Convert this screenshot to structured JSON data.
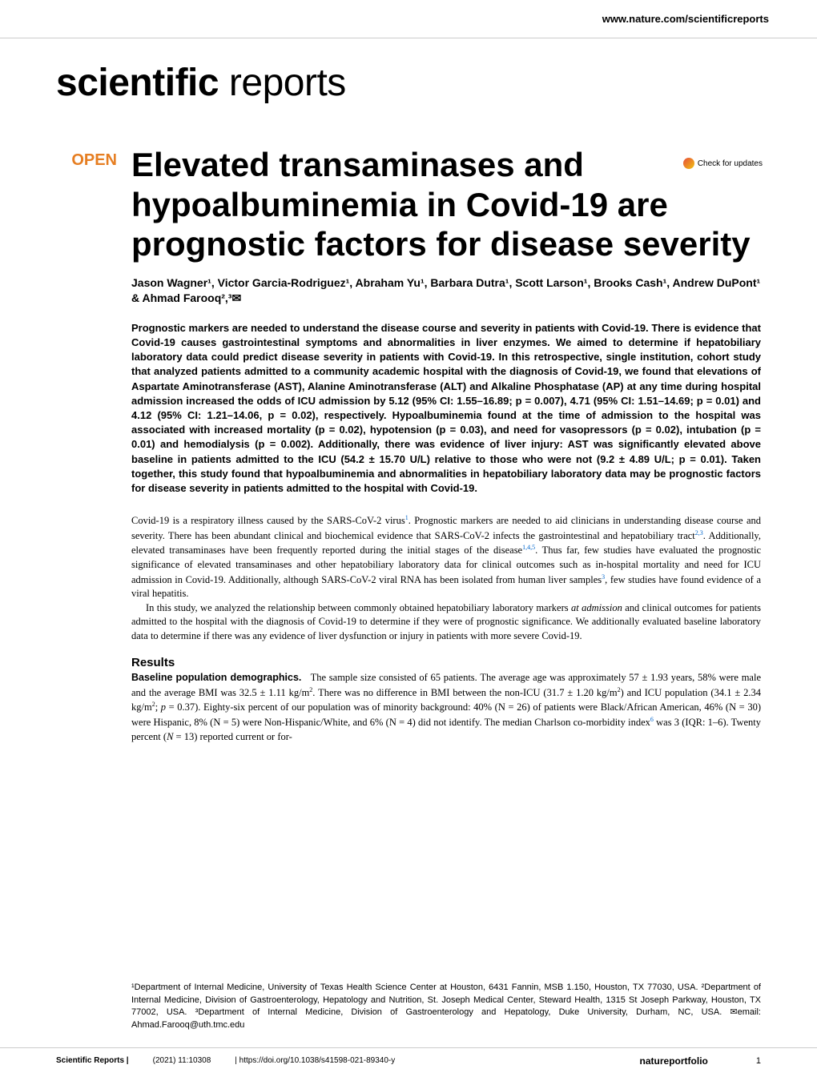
{
  "header": {
    "url": "www.nature.com/scientificreports"
  },
  "brand": {
    "bold": "scientific",
    "light": " reports"
  },
  "check_updates": "Check for updates",
  "open_label": "OPEN",
  "title": "Elevated transaminases and hypoalbuminemia in Covid-19 are prognostic factors for disease severity",
  "authors": "Jason Wagner¹, Victor Garcia-Rodriguez¹, Abraham Yu¹, Barbara Dutra¹, Scott Larson¹, Brooks Cash¹, Andrew DuPont¹ & Ahmad Farooq²,³✉",
  "abstract": "Prognostic markers are needed to understand the disease course and severity in patients with Covid-19. There is evidence that Covid-19 causes gastrointestinal symptoms and abnormalities in liver enzymes. We aimed to determine if hepatobiliary laboratory data could predict disease severity in patients with Covid-19. In this retrospective, single institution, cohort study that analyzed patients admitted to a community academic hospital with the diagnosis of Covid-19, we found that elevations of Aspartate Aminotransferase (AST), Alanine Aminotransferase (ALT) and Alkaline Phosphatase (AP) at any time during hospital admission increased the odds of ICU admission by 5.12 (95% CI: 1.55–16.89; p = 0.007), 4.71 (95% CI: 1.51–14.69; p = 0.01) and 4.12 (95% CI: 1.21–14.06, p = 0.02), respectively. Hypoalbuminemia found at the time of admission to the hospital was associated with increased mortality (p = 0.02), hypotension (p = 0.03), and need for vasopressors (p = 0.02), intubation (p = 0.01) and hemodialysis (p = 0.002). Additionally, there was evidence of liver injury: AST was significantly elevated above baseline in patients admitted to the ICU (54.2 ± 15.70 U/L) relative to those who were not (9.2 ± 4.89 U/L; p = 0.01). Taken together, this study found that hypoalbuminemia and abnormalities in hepatobiliary laboratory data may be prognostic factors for disease severity in patients admitted to the hospital with Covid-19.",
  "intro_p1": "Covid-19 is a respiratory illness caused by the SARS-CoV-2 virus¹. Prognostic markers are needed to aid clinicians in understanding disease course and severity. There has been abundant clinical and biochemical evidence that SARS-CoV-2 infects the gastrointestinal and hepatobiliary tract²,³. Additionally, elevated transaminases have been frequently reported during the initial stages of the disease¹,⁴,⁵. Thus far, few studies have evaluated the prognostic significance of elevated transaminases and other hepatobiliary laboratory data for clinical outcomes such as in-hospital mortality and need for ICU admission in Covid-19. Additionally, although SARS-CoV-2 viral RNA has been isolated from human liver samples³, few studies have found evidence of a viral hepatitis.",
  "intro_p2": "In this study, we analyzed the relationship between commonly obtained hepatobiliary laboratory markers at admission and clinical outcomes for patients admitted to the hospital with the diagnosis of Covid-19 to determine if they were of prognostic significance. We additionally evaluated baseline laboratory data to determine if there was any evidence of liver dysfunction or injury in patients with more severe Covid-19.",
  "results_head": "Results",
  "baseline_sub": "Baseline population demographics.",
  "baseline_text": "   The sample size consisted of 65 patients. The average age was approximately 57 ± 1.93 years, 58% were male and the average BMI was 32.5 ± 1.11 kg/m². There was no difference in BMI between the non-ICU (31.7 ± 1.20 kg/m²) and ICU population (34.1 ± 2.34 kg/m²; p = 0.37). Eighty-six percent of our population was of minority background: 40% (N = 26) of patients were Black/African American, 46% (N = 30) were Hispanic, 8% (N = 5) were Non-Hispanic/White, and 6% (N = 4) did not identify. The median Charlson co-morbidity index⁶ was 3 (IQR: 1–6). Twenty percent (N = 13) reported current or for-",
  "affiliations": "¹Department of Internal Medicine, University of Texas Health Science Center at Houston, 6431 Fannin, MSB 1.150, Houston, TX 77030, USA. ²Department of Internal Medicine, Division of Gastroenterology, Hepatology and Nutrition, St. Joseph Medical Center, Steward Health, 1315 St Joseph Parkway, Houston, TX 77002, USA. ³Department of Internal Medicine, Division of Gastroenterology and Hepatology, Duke University, Durham, NC, USA. ✉email: Ahmad.Farooq@uth.tmc.edu",
  "footer": {
    "journal": "Scientific Reports |",
    "citation": "(2021) 11:10308",
    "doi": "| https://doi.org/10.1038/s41598-021-89340-y",
    "nature": "natureportfolio",
    "page": "1"
  }
}
